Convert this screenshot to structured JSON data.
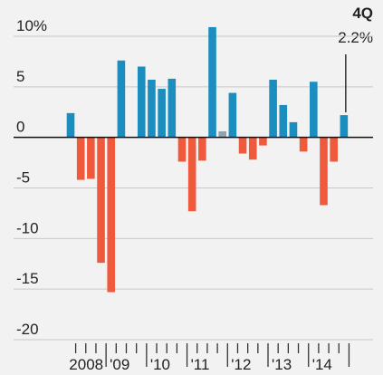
{
  "chart_data": {
    "type": "bar",
    "categories": [
      null,
      null,
      null,
      null,
      null,
      null,
      null,
      null,
      null,
      null,
      null,
      null,
      null,
      null,
      null,
      null,
      null,
      null,
      null,
      null,
      null,
      null,
      null,
      null,
      null,
      null,
      null,
      null
    ],
    "year_labels": [
      "2008",
      "'09",
      "'10",
      "'11",
      "'12",
      "'13",
      "'14"
    ],
    "values": [
      2.4,
      -4.2,
      -4.1,
      -12.4,
      -15.3,
      7.6,
      null,
      7.0,
      5.7,
      4.8,
      5.8,
      -2.4,
      -7.3,
      -2.3,
      10.9,
      0.6,
      4.4,
      -1.6,
      -2.2,
      -0.8,
      5.7,
      3.2,
      1.5,
      -1.4,
      5.5,
      -6.7,
      -2.4,
      2.2
    ],
    "colors": [
      "#1b8dbf",
      "#ef5a3d",
      "#ef5a3d",
      "#ef5a3d",
      "#ef5a3d",
      "#1b8dbf",
      "#1b8dbf",
      "#1b8dbf",
      "#1b8dbf",
      "#1b8dbf",
      "#1b8dbf",
      "#ef5a3d",
      "#ef5a3d",
      "#ef5a3d",
      "#1b8dbf",
      "#8fa3b1",
      "#1b8dbf",
      "#ef5a3d",
      "#ef5a3d",
      "#ef5a3d",
      "#1b8dbf",
      "#1b8dbf",
      "#1b8dbf",
      "#ef5a3d",
      "#1b8dbf",
      "#ef5a3d",
      "#ef5a3d",
      "#1b8dbf"
    ],
    "ylim": [
      -20,
      10
    ],
    "yticks": [
      {
        "value": 10,
        "label": "10%"
      },
      5,
      0,
      -5,
      -10,
      -15,
      -20
    ],
    "grid": true,
    "annotation": {
      "title": "4Q",
      "text": "2.2%"
    }
  }
}
